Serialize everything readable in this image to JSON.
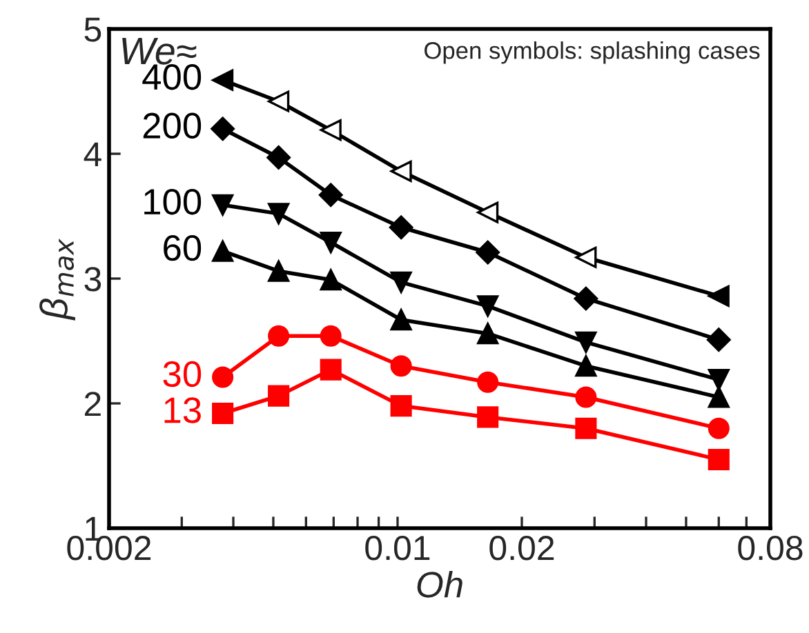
{
  "chart_data": {
    "type": "line",
    "xlabel": "Oh",
    "ylabel": "β$_{max}$",
    "legend_title": "We≈",
    "annotations": [
      "Open symbols: splashing cases"
    ],
    "x": [
      0.00377,
      0.00515,
      0.00689,
      0.0102,
      0.01654,
      0.0286,
      0.06
    ],
    "log": "x",
    "grid": false,
    "legend": "top left",
    "xlim": [
      0.002,
      0.08
    ],
    "xticks": [
      0.002,
      {
        "value": 0.003,
        "label": null
      },
      {
        "value": 0.004,
        "label": null
      },
      {
        "value": 0.005,
        "label": null
      },
      {
        "value": 0.006,
        "label": null
      },
      {
        "value": 0.007,
        "label": null
      },
      {
        "value": 0.008,
        "label": null
      },
      {
        "value": 0.009,
        "label": null
      },
      0.01,
      0.02,
      {
        "value": 0.03,
        "label": null
      },
      {
        "value": 0.04,
        "label": null
      },
      {
        "value": 0.05,
        "label": null
      },
      {
        "value": 0.06,
        "label": null
      },
      {
        "value": 0.07,
        "label": null
      },
      0.08
    ],
    "ylim": [
      1,
      5
    ],
    "yticks": [
      1,
      2,
      3,
      4,
      5
    ],
    "series": [
      {
        "name": "400",
        "color": "#000000",
        "marker": "triangle-left",
        "colors": [
          "#000000",
          "#ffffff",
          "#ffffff",
          "#ffffff",
          "#ffffff",
          "#ffffff",
          "#000000"
        ],
        "values": [
          4.59,
          4.42,
          4.19,
          3.86,
          3.53,
          3.17,
          2.86
        ]
      },
      {
        "name": "200",
        "color": "#000000",
        "marker": "diamond",
        "values": [
          4.2,
          3.97,
          3.67,
          3.41,
          3.21,
          2.84,
          2.51
        ]
      },
      {
        "name": "100",
        "color": "#000000",
        "marker": "triangle-down",
        "values": [
          3.59,
          3.52,
          3.29,
          2.97,
          2.78,
          2.49,
          2.19
        ]
      },
      {
        "name": "60",
        "color": "#000000",
        "marker": "triangle",
        "values": [
          3.22,
          3.06,
          2.99,
          2.67,
          2.56,
          2.3,
          2.05
        ]
      },
      {
        "name": "30",
        "color": "#ff0000",
        "marker": "circle",
        "values": [
          2.21,
          2.54,
          2.54,
          2.3,
          2.17,
          2.05,
          1.8
        ]
      },
      {
        "name": "13",
        "color": "#ff0000",
        "marker": "square",
        "values": [
          1.92,
          2.06,
          2.27,
          1.98,
          1.89,
          1.8,
          1.55
        ]
      }
    ]
  }
}
